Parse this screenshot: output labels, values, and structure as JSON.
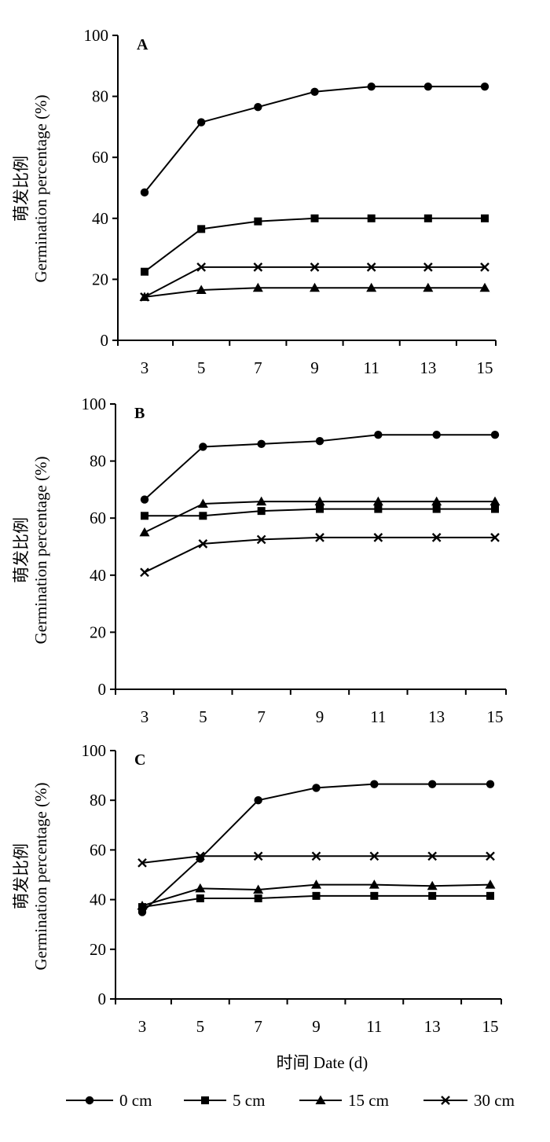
{
  "chart_data": [
    {
      "type": "line",
      "panel_label": "A",
      "ylabel_cn": "萌发比例",
      "ylabel": "Germination percentage (%)",
      "xlabel": "",
      "x": [
        3,
        5,
        7,
        9,
        11,
        13,
        15
      ],
      "ylim": [
        0,
        100
      ],
      "yticks": [
        0,
        20,
        40,
        60,
        80,
        100
      ],
      "series": [
        {
          "name": "0 cm",
          "marker": "circle",
          "values": [
            48.5,
            71.5,
            76.5,
            81.5,
            83.2,
            83.2,
            83.2
          ]
        },
        {
          "name": "5 cm",
          "marker": "square",
          "values": [
            22.5,
            36.5,
            39.0,
            40.0,
            40.0,
            40.0,
            40.0
          ]
        },
        {
          "name": "15 cm",
          "marker": "triangle",
          "values": [
            14.2,
            16.5,
            17.2,
            17.2,
            17.2,
            17.2,
            17.2
          ]
        },
        {
          "name": "30 cm",
          "marker": "x",
          "values": [
            14.2,
            24.0,
            24.0,
            24.0,
            24.0,
            24.0,
            24.0
          ]
        }
      ]
    },
    {
      "type": "line",
      "panel_label": "B",
      "ylabel_cn": "萌发比例",
      "ylabel": "Germination percentage (%)",
      "xlabel": "",
      "x": [
        3,
        5,
        7,
        9,
        11,
        13,
        15
      ],
      "ylim": [
        0,
        100
      ],
      "yticks": [
        0,
        20,
        40,
        60,
        80,
        100
      ],
      "series": [
        {
          "name": "0 cm",
          "marker": "circle",
          "values": [
            66.5,
            85.0,
            86.0,
            87.0,
            89.2,
            89.2,
            89.2
          ]
        },
        {
          "name": "5 cm",
          "marker": "square",
          "values": [
            60.8,
            60.8,
            62.5,
            63.2,
            63.2,
            63.2,
            63.2
          ]
        },
        {
          "name": "15 cm",
          "marker": "triangle",
          "values": [
            55.0,
            65.0,
            65.8,
            65.8,
            65.8,
            65.8,
            65.8
          ]
        },
        {
          "name": "30 cm",
          "marker": "x",
          "values": [
            41.0,
            51.0,
            52.5,
            53.2,
            53.2,
            53.2,
            53.2
          ]
        }
      ]
    },
    {
      "type": "line",
      "panel_label": "C",
      "ylabel_cn": "萌发比例",
      "ylabel": "Germination percentage (%)",
      "xlabel": "时间 Date (d)",
      "x": [
        3,
        5,
        7,
        9,
        11,
        13,
        15
      ],
      "ylim": [
        0,
        100
      ],
      "yticks": [
        0,
        20,
        40,
        60,
        80,
        100
      ],
      "series": [
        {
          "name": "0 cm",
          "marker": "circle",
          "values": [
            35.0,
            56.5,
            80.0,
            85.0,
            86.5,
            86.5,
            86.5
          ]
        },
        {
          "name": "5 cm",
          "marker": "square",
          "values": [
            37.0,
            40.5,
            40.5,
            41.5,
            41.5,
            41.5,
            41.5
          ]
        },
        {
          "name": "15 cm",
          "marker": "triangle",
          "values": [
            37.5,
            44.5,
            44.0,
            46.0,
            46.0,
            45.5,
            46.0
          ]
        },
        {
          "name": "30 cm",
          "marker": "x",
          "values": [
            54.8,
            57.5,
            57.5,
            57.5,
            57.5,
            57.5,
            57.5
          ]
        }
      ]
    }
  ],
  "legend": {
    "position": "bottom",
    "items": [
      {
        "label": "0 cm",
        "marker": "circle"
      },
      {
        "label": "5 cm",
        "marker": "square"
      },
      {
        "label": "15 cm",
        "marker": "triangle"
      },
      {
        "label": "30 cm",
        "marker": "x"
      }
    ]
  }
}
